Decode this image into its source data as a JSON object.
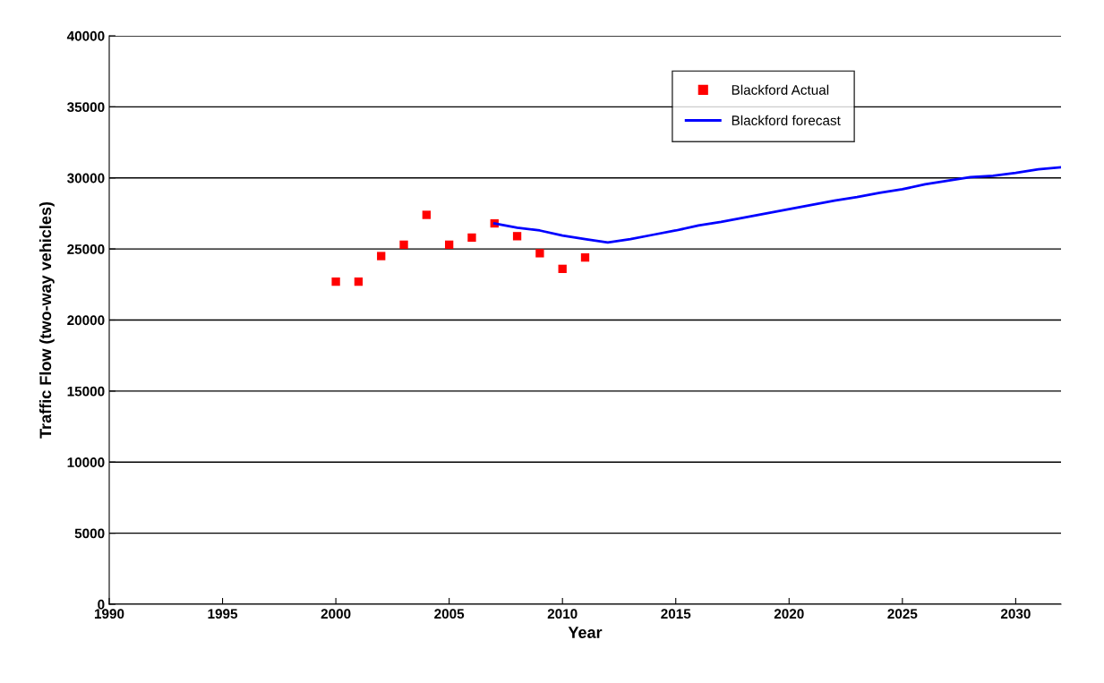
{
  "chart_data": {
    "type": "line",
    "xlabel": "Year",
    "ylabel": "Traffic Flow (two-way vehicles)",
    "xlim": [
      1990,
      2032
    ],
    "xticks": [
      1990,
      1995,
      2000,
      2005,
      2010,
      2015,
      2020,
      2025,
      2030
    ],
    "ylim": [
      0,
      40000
    ],
    "yticks": [
      0,
      5000,
      10000,
      15000,
      20000,
      25000,
      30000,
      35000,
      40000
    ],
    "grid": "y",
    "legend": "top right",
    "series": [
      {
        "name": "Blackford Actual",
        "type": "scatter",
        "marker": "square",
        "color": "#ff0000",
        "x": [
          2000,
          2001,
          2002,
          2003,
          2004,
          2005,
          2006,
          2007,
          2008,
          2009,
          2010,
          2011
        ],
        "values": [
          22700,
          22700,
          24500,
          25300,
          27400,
          25300,
          25800,
          26800,
          25900,
          24700,
          23600,
          24400
        ]
      },
      {
        "name": "Blackford forecast",
        "marker": "none",
        "line_style": "solid",
        "color": "#0000ff",
        "x": [
          2007,
          2008,
          2009,
          2010,
          2011,
          2012,
          2013,
          2014,
          2015,
          2016,
          2017,
          2018,
          2019,
          2020,
          2021,
          2022,
          2023,
          2024,
          2025,
          2026,
          2027,
          2028,
          2029,
          2030,
          2031,
          2032
        ],
        "values": [
          26800,
          26500,
          26300,
          25950,
          25700,
          25450,
          25700,
          26000,
          26300,
          26650,
          26900,
          27200,
          27500,
          27800,
          28100,
          28400,
          28650,
          28950,
          29200,
          29550,
          29800,
          30050,
          30150,
          30350,
          30600,
          30750
        ]
      }
    ]
  }
}
